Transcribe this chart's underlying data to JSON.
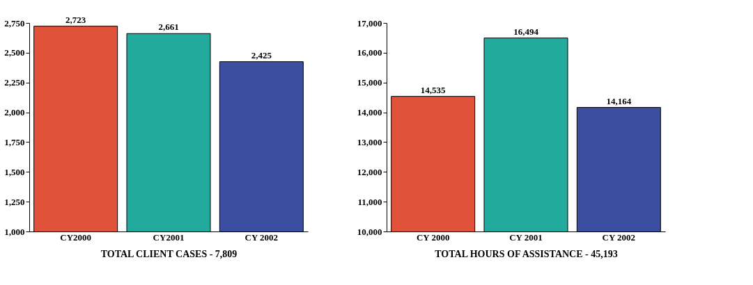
{
  "chart_data": [
    {
      "type": "bar",
      "categories": [
        "CY2000",
        "CY2001",
        "CY 2002"
      ],
      "values": [
        2723,
        2661,
        2425
      ],
      "value_labels": [
        "2,723",
        "2,661",
        "2,425"
      ],
      "colors": [
        "#e0533a",
        "#22aa9c",
        "#3b4ea0"
      ],
      "xlabel": "TOTAL CLIENT CASES - 7,809",
      "ylim": [
        1000,
        2750
      ],
      "yticks": [
        {
          "value": 1000,
          "label": "1,000"
        },
        {
          "value": 1250,
          "label": "1,250"
        },
        {
          "value": 1500,
          "label": "1,500"
        },
        {
          "value": 1750,
          "label": "1,750"
        },
        {
          "value": 2000,
          "label": "2,000"
        },
        {
          "value": 2250,
          "label": "2,250"
        },
        {
          "value": 2500,
          "label": "2,500"
        },
        {
          "value": 2750,
          "label": "2,750"
        }
      ]
    },
    {
      "type": "bar",
      "categories": [
        "CY 2000",
        "CY 2001",
        "CY 2002"
      ],
      "values": [
        14535,
        16494,
        14164
      ],
      "value_labels": [
        "14,535",
        "16,494",
        "14,164"
      ],
      "colors": [
        "#e0533a",
        "#22aa9c",
        "#3b4ea0"
      ],
      "xlabel": "TOTAL HOURS OF ASSISTANCE - 45,193",
      "ylim": [
        10000,
        17000
      ],
      "yticks": [
        {
          "value": 10000,
          "label": "10,000"
        },
        {
          "value": 11000,
          "label": "11,000"
        },
        {
          "value": 12000,
          "label": "12,000"
        },
        {
          "value": 13000,
          "label": "13,000"
        },
        {
          "value": 14000,
          "label": "14,000"
        },
        {
          "value": 15000,
          "label": "15,000"
        },
        {
          "value": 16000,
          "label": "16,000"
        },
        {
          "value": 17000,
          "label": "17,000"
        }
      ]
    }
  ]
}
